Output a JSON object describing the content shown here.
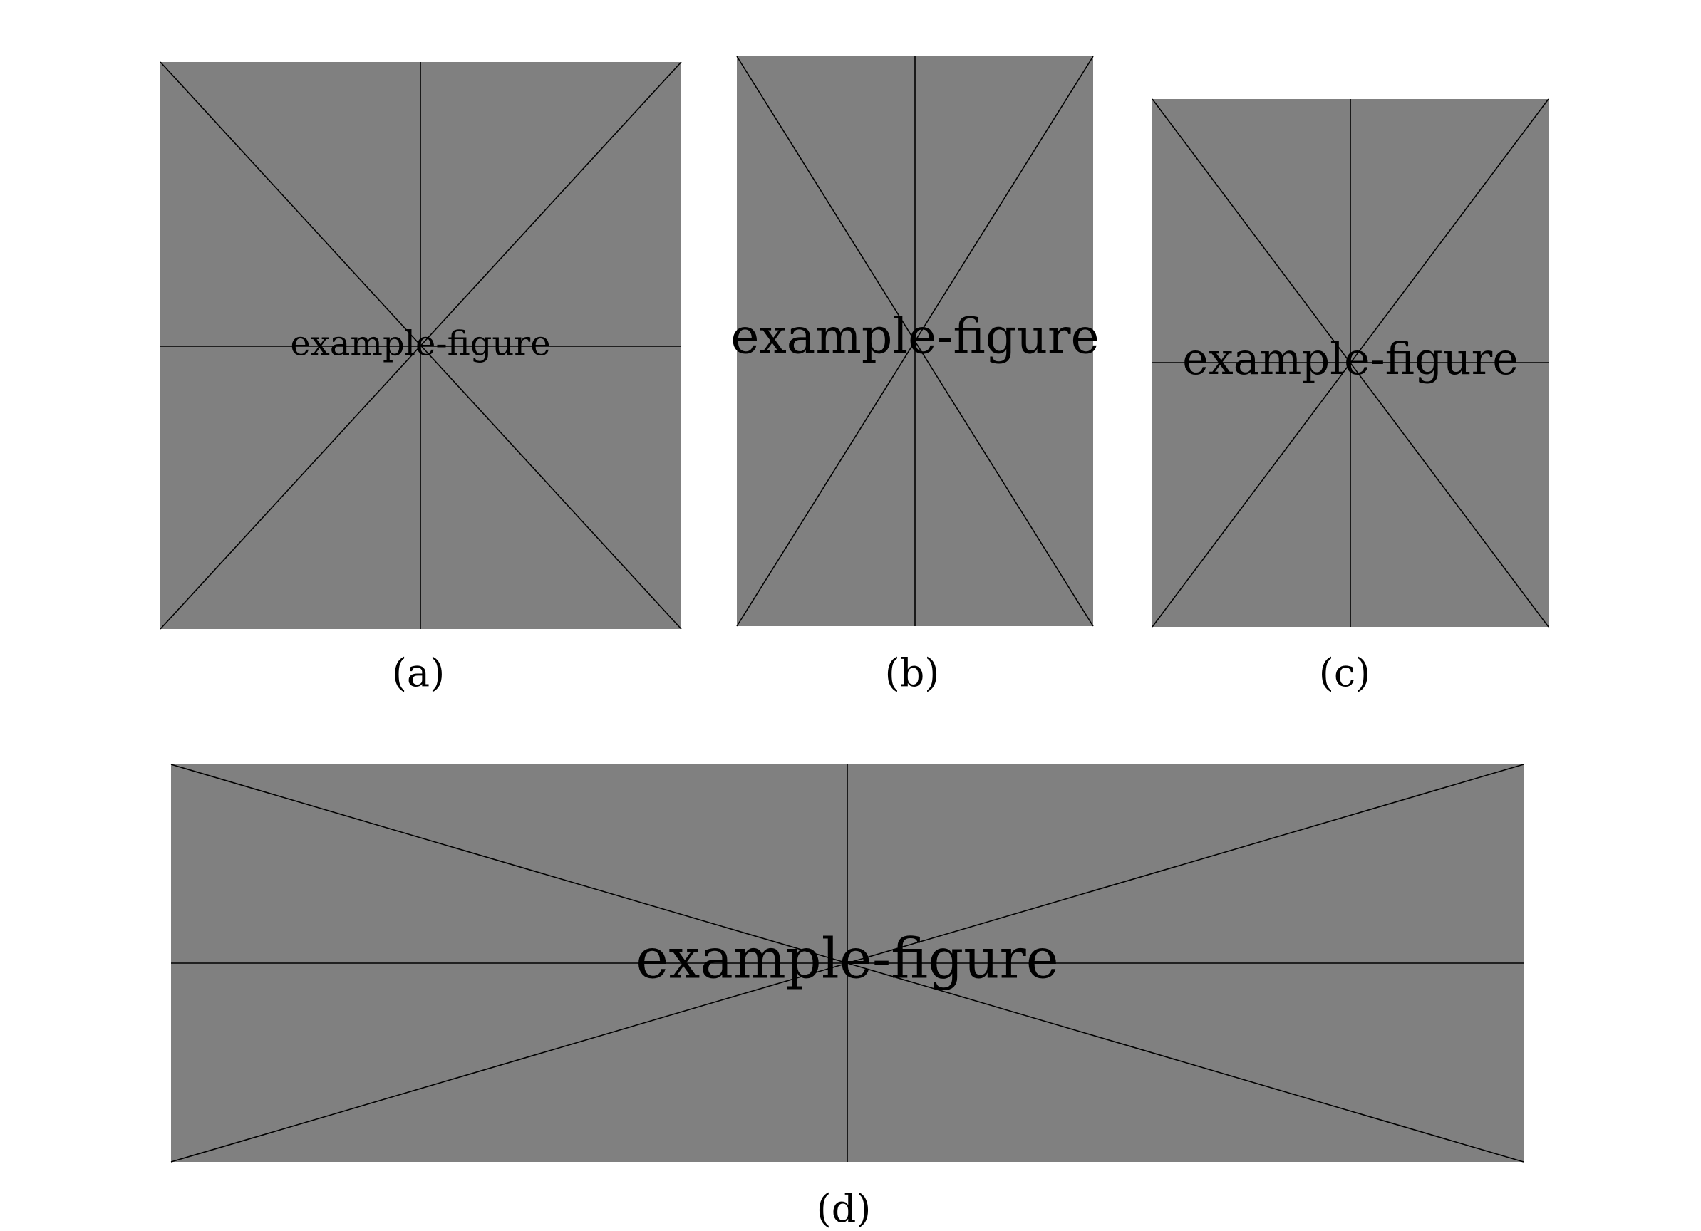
{
  "colors": {
    "placeholder_fill": "#808080",
    "line": "#000000",
    "background": "#ffffff"
  },
  "panels": [
    {
      "id": "a",
      "label": "example-figure",
      "caption": "(a)"
    },
    {
      "id": "b",
      "label": "example-figure",
      "caption": "(b)"
    },
    {
      "id": "c",
      "label": "example-figure",
      "caption": "(c)"
    },
    {
      "id": "d",
      "label": "example-figure",
      "caption": "(d)"
    }
  ]
}
